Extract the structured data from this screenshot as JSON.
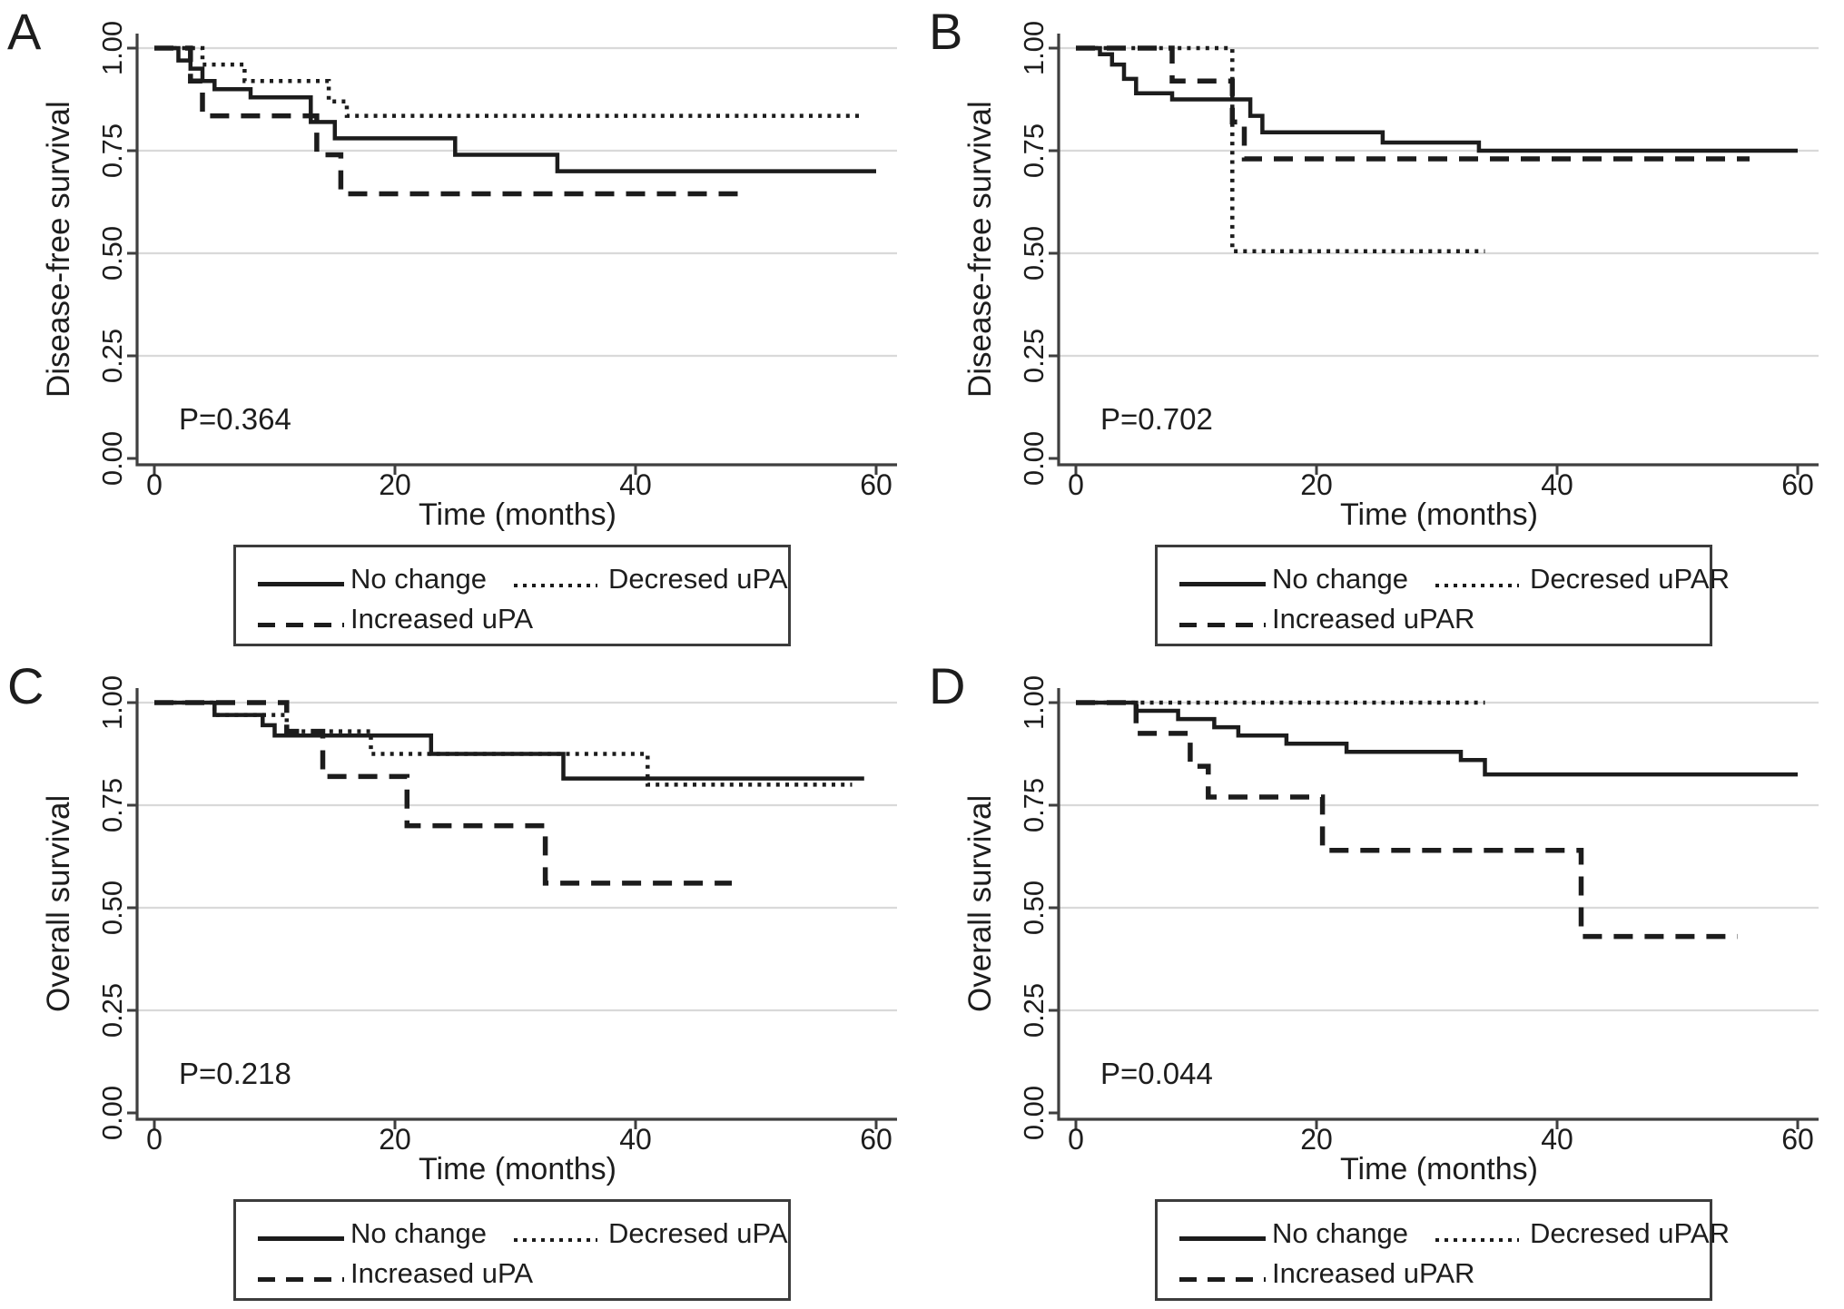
{
  "figure": {
    "background": "#ffffff",
    "curve_color": "#1c1c1c",
    "grid_color": "#d9d9d9",
    "axis_color": "#3f3f3f",
    "text_color": "#1d1d1d",
    "legend_border_color": "#3c3c3c"
  },
  "chart_data": [
    {
      "panel_letter": "A",
      "type": "line",
      "subtype": "kaplan_meier_step",
      "ylabel": "Disease-free survival",
      "xlabel": "Time (months)",
      "annotation": "P=0.364",
      "xlim": [
        0,
        60
      ],
      "ylim": [
        0,
        1
      ],
      "xticks": [
        0,
        20,
        40,
        60
      ],
      "yticks": [
        0,
        0.25,
        0.5,
        0.75,
        1
      ],
      "ytick_labels": [
        "0.00",
        "0.25",
        "0.50",
        "0.75",
        "1.00"
      ],
      "grid": "horizontal",
      "legend_position": "below",
      "legend_rows": [
        [
          "No change",
          "Decresed uPA"
        ],
        [
          "Increased uPA"
        ]
      ],
      "series": [
        {
          "name": "No change",
          "line_style": "solid",
          "points": [
            [
              0,
              1.0
            ],
            [
              2,
              0.97
            ],
            [
              3,
              0.95
            ],
            [
              4,
              0.92
            ],
            [
              5,
              0.9
            ],
            [
              8,
              0.88
            ],
            [
              13,
              0.82
            ],
            [
              15,
              0.78
            ],
            [
              25,
              0.74
            ],
            [
              33.5,
              0.7
            ],
            [
              60,
              0.7
            ]
          ]
        },
        {
          "name": "Decresed uPA",
          "line_style": "dotted",
          "points": [
            [
              0,
              1.0
            ],
            [
              4,
              0.96
            ],
            [
              7.5,
              0.92
            ],
            [
              14.5,
              0.87
            ],
            [
              16,
              0.835
            ],
            [
              59,
              0.835
            ]
          ]
        },
        {
          "name": "Increased uPA",
          "line_style": "dashed",
          "points": [
            [
              0,
              1.0
            ],
            [
              3,
              0.92
            ],
            [
              4,
              0.835
            ],
            [
              13.5,
              0.74
            ],
            [
              15.5,
              0.645
            ],
            [
              49,
              0.645
            ]
          ]
        }
      ]
    },
    {
      "panel_letter": "B",
      "type": "line",
      "subtype": "kaplan_meier_step",
      "ylabel": "Disease-free survival",
      "xlabel": "Time (months)",
      "annotation": "P=0.702",
      "xlim": [
        0,
        60
      ],
      "ylim": [
        0,
        1
      ],
      "xticks": [
        0,
        20,
        40,
        60
      ],
      "yticks": [
        0,
        0.25,
        0.5,
        0.75,
        1
      ],
      "ytick_labels": [
        "0.00",
        "0.25",
        "0.50",
        "0.75",
        "1.00"
      ],
      "grid": "horizontal",
      "legend_position": "below",
      "legend_rows": [
        [
          "No change",
          "Decresed uPAR"
        ],
        [
          "Increased uPAR"
        ]
      ],
      "series": [
        {
          "name": "No change",
          "line_style": "solid",
          "points": [
            [
              0,
              1.0
            ],
            [
              2,
              0.985
            ],
            [
              3,
              0.96
            ],
            [
              4,
              0.925
            ],
            [
              5,
              0.89
            ],
            [
              8,
              0.875
            ],
            [
              14.5,
              0.835
            ],
            [
              15.5,
              0.795
            ],
            [
              25.5,
              0.77
            ],
            [
              33.5,
              0.75
            ],
            [
              60,
              0.75
            ]
          ]
        },
        {
          "name": "Decresed uPAR",
          "line_style": "dotted",
          "points": [
            [
              0,
              1.0
            ],
            [
              13,
              0.505
            ],
            [
              34,
              0.505
            ]
          ]
        },
        {
          "name": "Increased uPAR",
          "line_style": "dashed",
          "points": [
            [
              0,
              1.0
            ],
            [
              8,
              0.92
            ],
            [
              13,
              0.82
            ],
            [
              14,
              0.73
            ],
            [
              56,
              0.73
            ]
          ]
        }
      ]
    },
    {
      "panel_letter": "C",
      "type": "line",
      "subtype": "kaplan_meier_step",
      "ylabel": "Overall survival",
      "xlabel": "Time (months)",
      "annotation": "P=0.218",
      "xlim": [
        0,
        60
      ],
      "ylim": [
        0,
        1
      ],
      "xticks": [
        0,
        20,
        40,
        60
      ],
      "yticks": [
        0,
        0.25,
        0.5,
        0.75,
        1
      ],
      "ytick_labels": [
        "0.00",
        "0.25",
        "0.50",
        "0.75",
        "1.00"
      ],
      "grid": "horizontal",
      "legend_position": "below",
      "legend_rows": [
        [
          "No change",
          "Decresed uPA"
        ],
        [
          "Increased uPA"
        ]
      ],
      "series": [
        {
          "name": "No change",
          "line_style": "solid",
          "points": [
            [
              0,
              1.0
            ],
            [
              5,
              0.97
            ],
            [
              9,
              0.945
            ],
            [
              10,
              0.92
            ],
            [
              23,
              0.875
            ],
            [
              34,
              0.815
            ],
            [
              59,
              0.815
            ]
          ]
        },
        {
          "name": "Decresed uPA",
          "line_style": "dotted",
          "points": [
            [
              0,
              1.0
            ],
            [
              5,
              0.97
            ],
            [
              11,
              0.93
            ],
            [
              18,
              0.875
            ],
            [
              41,
              0.8
            ],
            [
              58,
              0.8
            ]
          ]
        },
        {
          "name": "Increased uPA",
          "line_style": "dashed",
          "points": [
            [
              0,
              1.0
            ],
            [
              11,
              0.93
            ],
            [
              14,
              0.82
            ],
            [
              21,
              0.7
            ],
            [
              32.5,
              0.56
            ],
            [
              48,
              0.56
            ]
          ]
        }
      ]
    },
    {
      "panel_letter": "D",
      "type": "line",
      "subtype": "kaplan_meier_step",
      "ylabel": "Overall survival",
      "xlabel": "Time (months)",
      "annotation": "P=0.044",
      "xlim": [
        0,
        60
      ],
      "ylim": [
        0,
        1
      ],
      "xticks": [
        0,
        20,
        40,
        60
      ],
      "yticks": [
        0,
        0.25,
        0.5,
        0.75,
        1
      ],
      "ytick_labels": [
        "0.00",
        "0.25",
        "0.50",
        "0.75",
        "1.00"
      ],
      "grid": "horizontal",
      "legend_position": "below",
      "legend_rows": [
        [
          "No change",
          "Decresed uPAR"
        ],
        [
          "Increased uPAR"
        ]
      ],
      "series": [
        {
          "name": "No change",
          "line_style": "solid",
          "points": [
            [
              0,
              1.0
            ],
            [
              5,
              0.98
            ],
            [
              8.5,
              0.96
            ],
            [
              11.5,
              0.94
            ],
            [
              13.5,
              0.92
            ],
            [
              17.5,
              0.9
            ],
            [
              22.5,
              0.88
            ],
            [
              32,
              0.86
            ],
            [
              34,
              0.825
            ],
            [
              60,
              0.825
            ]
          ]
        },
        {
          "name": "Decresed uPAR",
          "line_style": "dotted",
          "points": [
            [
              0,
              1.0
            ],
            [
              34,
              1.0
            ]
          ]
        },
        {
          "name": "Increased uPAR",
          "line_style": "dashed",
          "points": [
            [
              0,
              1.0
            ],
            [
              5,
              0.925
            ],
            [
              9.5,
              0.845
            ],
            [
              11,
              0.77
            ],
            [
              20.5,
              0.64
            ],
            [
              42,
              0.43
            ],
            [
              55,
              0.43
            ]
          ]
        }
      ]
    }
  ]
}
